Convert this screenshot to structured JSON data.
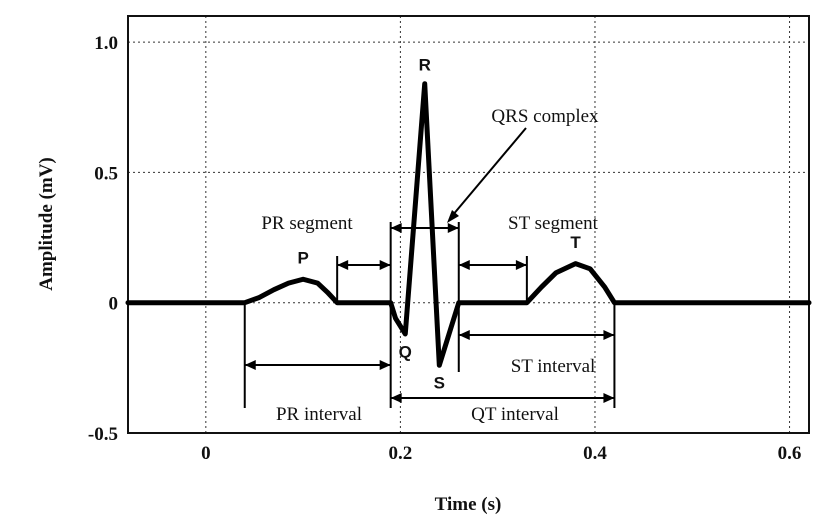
{
  "chart_data": {
    "type": "line",
    "title": "",
    "xlabel": "Time (s)",
    "ylabel": "Amplitude (mV)",
    "xlim": [
      -0.08,
      0.62
    ],
    "ylim": [
      -0.5,
      1.1
    ],
    "x_ticks": [
      {
        "value": 0,
        "label": "0"
      },
      {
        "value": 0.2,
        "label": "0.2"
      },
      {
        "value": 0.4,
        "label": "0.4"
      },
      {
        "value": 0.6,
        "label": "0.6"
      }
    ],
    "y_ticks": [
      {
        "value": 1.0,
        "label": "1.0"
      },
      {
        "value": 0.5,
        "label": "0.5"
      },
      {
        "value": 0,
        "label": "0"
      },
      {
        "value": -0.5,
        "label": "-0.5"
      }
    ],
    "grid": true,
    "series": [
      {
        "color": "#000000",
        "points": [
          [
            -0.08,
            0
          ],
          [
            0.04,
            0
          ],
          [
            0.055,
            0.02
          ],
          [
            0.07,
            0.05
          ],
          [
            0.085,
            0.075
          ],
          [
            0.1,
            0.09
          ],
          [
            0.115,
            0.075
          ],
          [
            0.125,
            0.04
          ],
          [
            0.135,
            0
          ],
          [
            0.19,
            0
          ],
          [
            0.195,
            -0.06
          ],
          [
            0.205,
            -0.12
          ],
          [
            0.225,
            0.84
          ],
          [
            0.24,
            -0.24
          ],
          [
            0.26,
            0
          ],
          [
            0.33,
            0
          ],
          [
            0.345,
            0.06
          ],
          [
            0.36,
            0.115
          ],
          [
            0.38,
            0.15
          ],
          [
            0.395,
            0.13
          ],
          [
            0.41,
            0.06
          ],
          [
            0.42,
            0
          ],
          [
            0.62,
            0
          ]
        ]
      }
    ],
    "wave_labels": [
      {
        "text": "P",
        "x": 0.1,
        "y": 0.15
      },
      {
        "text": "Q",
        "x": 0.205,
        "y": -0.21
      },
      {
        "text": "R",
        "x": 0.225,
        "y": 0.89
      },
      {
        "text": "S",
        "x": 0.24,
        "y": -0.33
      },
      {
        "text": "T",
        "x": 0.38,
        "y": 0.21
      }
    ],
    "annotations": {
      "pr_segment": {
        "label": "PR segment",
        "x_start": 0.135,
        "x_end": 0.19
      },
      "st_segment": {
        "label": "ST segment",
        "x_start": 0.26,
        "x_end": 0.33
      },
      "qrs_complex": {
        "label": "QRS complex",
        "x_start": 0.19,
        "x_end": 0.26
      },
      "pr_interval": {
        "label": "PR interval",
        "x_start": 0.04,
        "x_end": 0.19
      },
      "st_interval": {
        "label": "ST interval",
        "x_start": 0.26,
        "x_end": 0.42
      },
      "qt_interval": {
        "label": "QT interval",
        "x_start": 0.19,
        "x_end": 0.42
      }
    }
  }
}
